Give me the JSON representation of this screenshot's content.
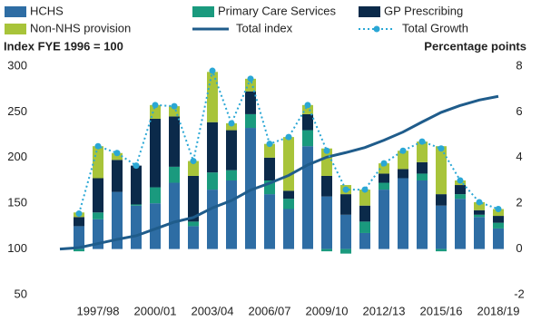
{
  "chart_data": {
    "type": "bar",
    "y_label": "Index FYE 1996 = 100",
    "y2_label": "Percentage points",
    "categories": [
      null,
      null,
      "1997/98",
      null,
      null,
      "2000/01",
      null,
      null,
      "2003/04",
      null,
      null,
      "2006/07",
      null,
      null,
      "2009/10",
      null,
      null,
      "2012/13",
      null,
      null,
      "2015/16",
      null,
      null,
      "2018/19"
    ],
    "series": [
      {
        "name": "HCHS",
        "kind": "stacked-bar",
        "axis": "y2",
        "color": "#2e6da4",
        "values": [
          null,
          1.0,
          1.3,
          2.5,
          1.9,
          2.0,
          2.9,
          1.0,
          2.6,
          3.0,
          5.3,
          2.4,
          1.75,
          4.5,
          2.3,
          1.5,
          0.7,
          2.6,
          3.1,
          3.0,
          1.9,
          2.2,
          1.4,
          0.9
        ]
      },
      {
        "name": "Primary Care Services",
        "kind": "stacked-bar",
        "axis": "y2",
        "color": "#1a9a7e",
        "values": [
          null,
          -0.1,
          0.3,
          0.0,
          0.05,
          0.7,
          0.7,
          0.2,
          0.75,
          0.45,
          0.6,
          0.6,
          0.45,
          0.7,
          -0.1,
          -0.2,
          0.5,
          0.3,
          0.0,
          0.3,
          -0.1,
          0.2,
          0.1,
          0.25
        ]
      },
      {
        "name": "GP Prescribing",
        "kind": "stacked-bar",
        "axis": "y2",
        "color": "#0b2a4a",
        "values": [
          null,
          0.4,
          1.5,
          1.4,
          1.7,
          3.0,
          2.2,
          2.0,
          2.2,
          1.75,
          1.0,
          1.0,
          0.35,
          0.7,
          0.9,
          0.9,
          0.7,
          0.4,
          0.4,
          0.5,
          0.5,
          0.4,
          0.2,
          0.3
        ]
      },
      {
        "name": "Non-NHS provision",
        "kind": "stacked-bar",
        "axis": "y2",
        "color": "#a8c43a",
        "values": [
          null,
          0.2,
          1.4,
          0.3,
          0.0,
          0.6,
          0.45,
          0.65,
          2.2,
          0.3,
          0.55,
          0.6,
          2.35,
          0.4,
          1.2,
          0.4,
          0.7,
          0.45,
          0.8,
          0.9,
          2.1,
          0.2,
          0.35,
          0.3
        ]
      },
      {
        "name": "Total index",
        "kind": "line",
        "axis": "y",
        "color": "#1f5c8b",
        "values": [
          100,
          101.5,
          106,
          110.5,
          114.5,
          122,
          129.5,
          134.5,
          145,
          153,
          164.5,
          172,
          180.5,
          192,
          200.5,
          205.5,
          211,
          219,
          228,
          239,
          249.5,
          257,
          263,
          267
        ]
      },
      {
        "name": "Total Growth",
        "kind": "dotted-line",
        "axis": "y2",
        "color": "#2aa7d5",
        "values": [
          null,
          1.55,
          4.5,
          4.2,
          3.65,
          6.3,
          6.25,
          3.85,
          7.8,
          5.5,
          7.45,
          4.6,
          4.9,
          6.3,
          4.3,
          2.6,
          2.6,
          3.75,
          4.3,
          4.7,
          4.4,
          3.0,
          2.05,
          1.75
        ]
      }
    ],
    "ylim": [
      50,
      300
    ],
    "yticks": [
      50,
      100,
      150,
      200,
      250,
      300
    ],
    "y2lim": [
      -2,
      8
    ],
    "y2ticks": [
      -2,
      0,
      2,
      4,
      6,
      8
    ],
    "grid": false
  }
}
